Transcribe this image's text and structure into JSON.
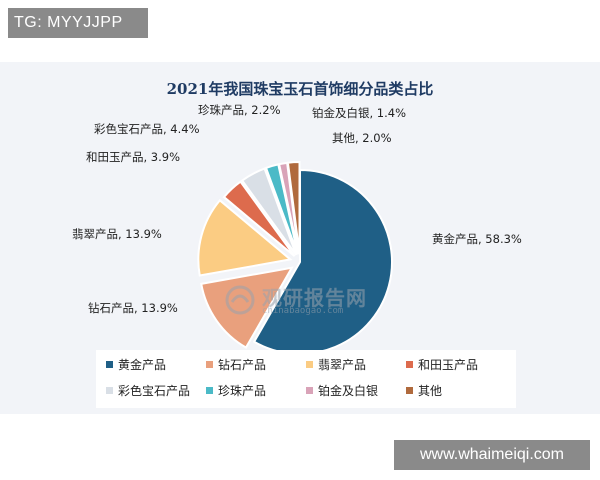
{
  "overlay": {
    "top_tag": "TG: MYYJJPP",
    "bottom_site": "www.whaimeiqi.com"
  },
  "watermark": {
    "main": "观研报告网",
    "sub": "chinabaogao.com"
  },
  "colors": {
    "panel_bg": "#f2f4f8",
    "title": "#1f3b63"
  },
  "chart_data": {
    "type": "pie",
    "title": "2021年我国珠宝玉石首饰细分品类占比",
    "slices": [
      {
        "name": "黄金产品",
        "value": 58.3,
        "label": "黄金产品, 58.3%",
        "color": "#1f5f86"
      },
      {
        "name": "钻石产品",
        "value": 13.9,
        "label": "钻石产品, 13.9%",
        "color": "#e9a07d"
      },
      {
        "name": "翡翠产品",
        "value": 13.9,
        "label": "翡翠产品, 13.9%",
        "color": "#fbcc83"
      },
      {
        "name": "和田玉产品",
        "value": 3.9,
        "label": "和田玉产品, 3.9%",
        "color": "#dd6b4d"
      },
      {
        "name": "彩色宝石产品",
        "value": 4.4,
        "label": "彩色宝石产品, 4.4%",
        "color": "#d9dfe6"
      },
      {
        "name": "珍珠产品",
        "value": 2.2,
        "label": "珍珠产品, 2.2%",
        "color": "#4bbac7"
      },
      {
        "name": "铂金及白银",
        "value": 1.4,
        "label": "铂金及白银, 1.4%",
        "color": "#d9a3b8"
      },
      {
        "name": "其他",
        "value": 2.0,
        "label": "其他, 2.0%",
        "color": "#b06a3d"
      }
    ],
    "legend_placement": "bottom"
  }
}
